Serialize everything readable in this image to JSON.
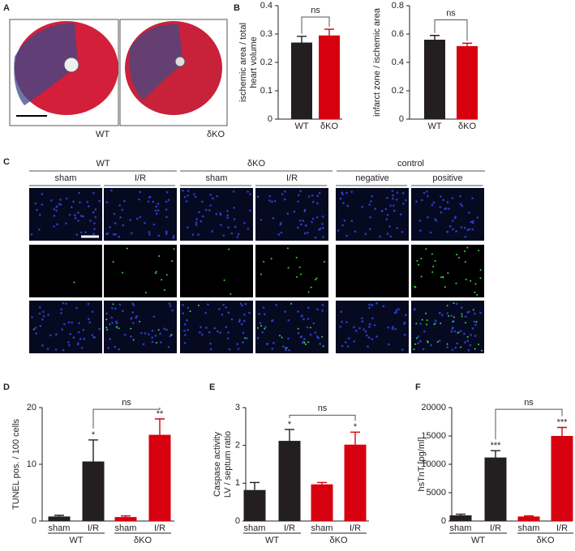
{
  "panel_letters": [
    "A",
    "B",
    "C",
    "D",
    "E",
    "F"
  ],
  "panel_a": {
    "labels": [
      "WT",
      "δKO"
    ]
  },
  "panel_c": {
    "groups": [
      "WT",
      "δKO",
      "control"
    ],
    "columns": [
      "sham",
      "I/R",
      "sham",
      "I/R",
      "negative",
      "positive"
    ]
  },
  "chart_data": [
    {
      "type": "bar",
      "ylabel": [
        "ischemic area / total",
        "heart volume"
      ],
      "categories": [
        "WT",
        "δKO"
      ],
      "values": [
        0.27,
        0.295
      ],
      "errors": [
        0.022,
        0.022
      ],
      "colors": [
        "#231f20",
        "#d7000f"
      ],
      "ylim": [
        0,
        0.4
      ],
      "yticks": [
        0,
        0.1,
        0.2,
        0.3,
        0.4
      ],
      "annotation": "ns"
    },
    {
      "type": "bar",
      "ylabel": [
        "infarct zone / ischemic area"
      ],
      "categories": [
        "WT",
        "δKO"
      ],
      "values": [
        0.56,
        0.515
      ],
      "errors": [
        0.03,
        0.02
      ],
      "colors": [
        "#231f20",
        "#d7000f"
      ],
      "ylim": [
        0,
        0.8
      ],
      "yticks": [
        0,
        0.2,
        0.4,
        0.6,
        0.8
      ],
      "annotation": "ns"
    },
    {
      "type": "bar",
      "ylabel": [
        "TUNEL pos. / 100 cells"
      ],
      "categories": [
        "sham",
        "I/R",
        "sham",
        "I/R"
      ],
      "group_labels": [
        "WT",
        "δKO"
      ],
      "values": [
        0.8,
        10.5,
        0.7,
        15.2
      ],
      "errors": [
        0.2,
        3.8,
        0.2,
        2.8
      ],
      "stars": [
        null,
        "*",
        null,
        "**"
      ],
      "colors": [
        "#231f20",
        "#231f20",
        "#d7000f",
        "#d7000f"
      ],
      "ylim": [
        0,
        20
      ],
      "yticks": [
        0,
        10,
        20
      ],
      "annotation": "ns"
    },
    {
      "type": "bar",
      "ylabel": [
        "Caspase activity",
        "LV / septum ratio"
      ],
      "categories": [
        "sham",
        "I/R",
        "sham",
        "I/R"
      ],
      "group_labels": [
        "WT",
        "δKO"
      ],
      "values": [
        0.82,
        2.12,
        0.97,
        2.02
      ],
      "errors": [
        0.2,
        0.3,
        0.05,
        0.33
      ],
      "stars": [
        null,
        "*",
        null,
        "*"
      ],
      "colors": [
        "#231f20",
        "#231f20",
        "#d7000f",
        "#d7000f"
      ],
      "ylim": [
        0,
        3
      ],
      "yticks": [
        0,
        1,
        2,
        3
      ],
      "annotation": "ns"
    },
    {
      "type": "bar",
      "ylabel": [
        "hsTnT [pg/ml]"
      ],
      "categories": [
        "sham",
        "I/R",
        "sham",
        "I/R"
      ],
      "group_labels": [
        "WT",
        "δKO"
      ],
      "values": [
        1000,
        11200,
        800,
        15000
      ],
      "errors": [
        200,
        1200,
        100,
        1500
      ],
      "stars": [
        null,
        "***",
        null,
        "***"
      ],
      "colors": [
        "#231f20",
        "#231f20",
        "#d7000f",
        "#d7000f"
      ],
      "ylim": [
        0,
        20000
      ],
      "yticks": [
        0,
        5000,
        10000,
        15000,
        20000
      ],
      "annotation": "ns"
    }
  ]
}
